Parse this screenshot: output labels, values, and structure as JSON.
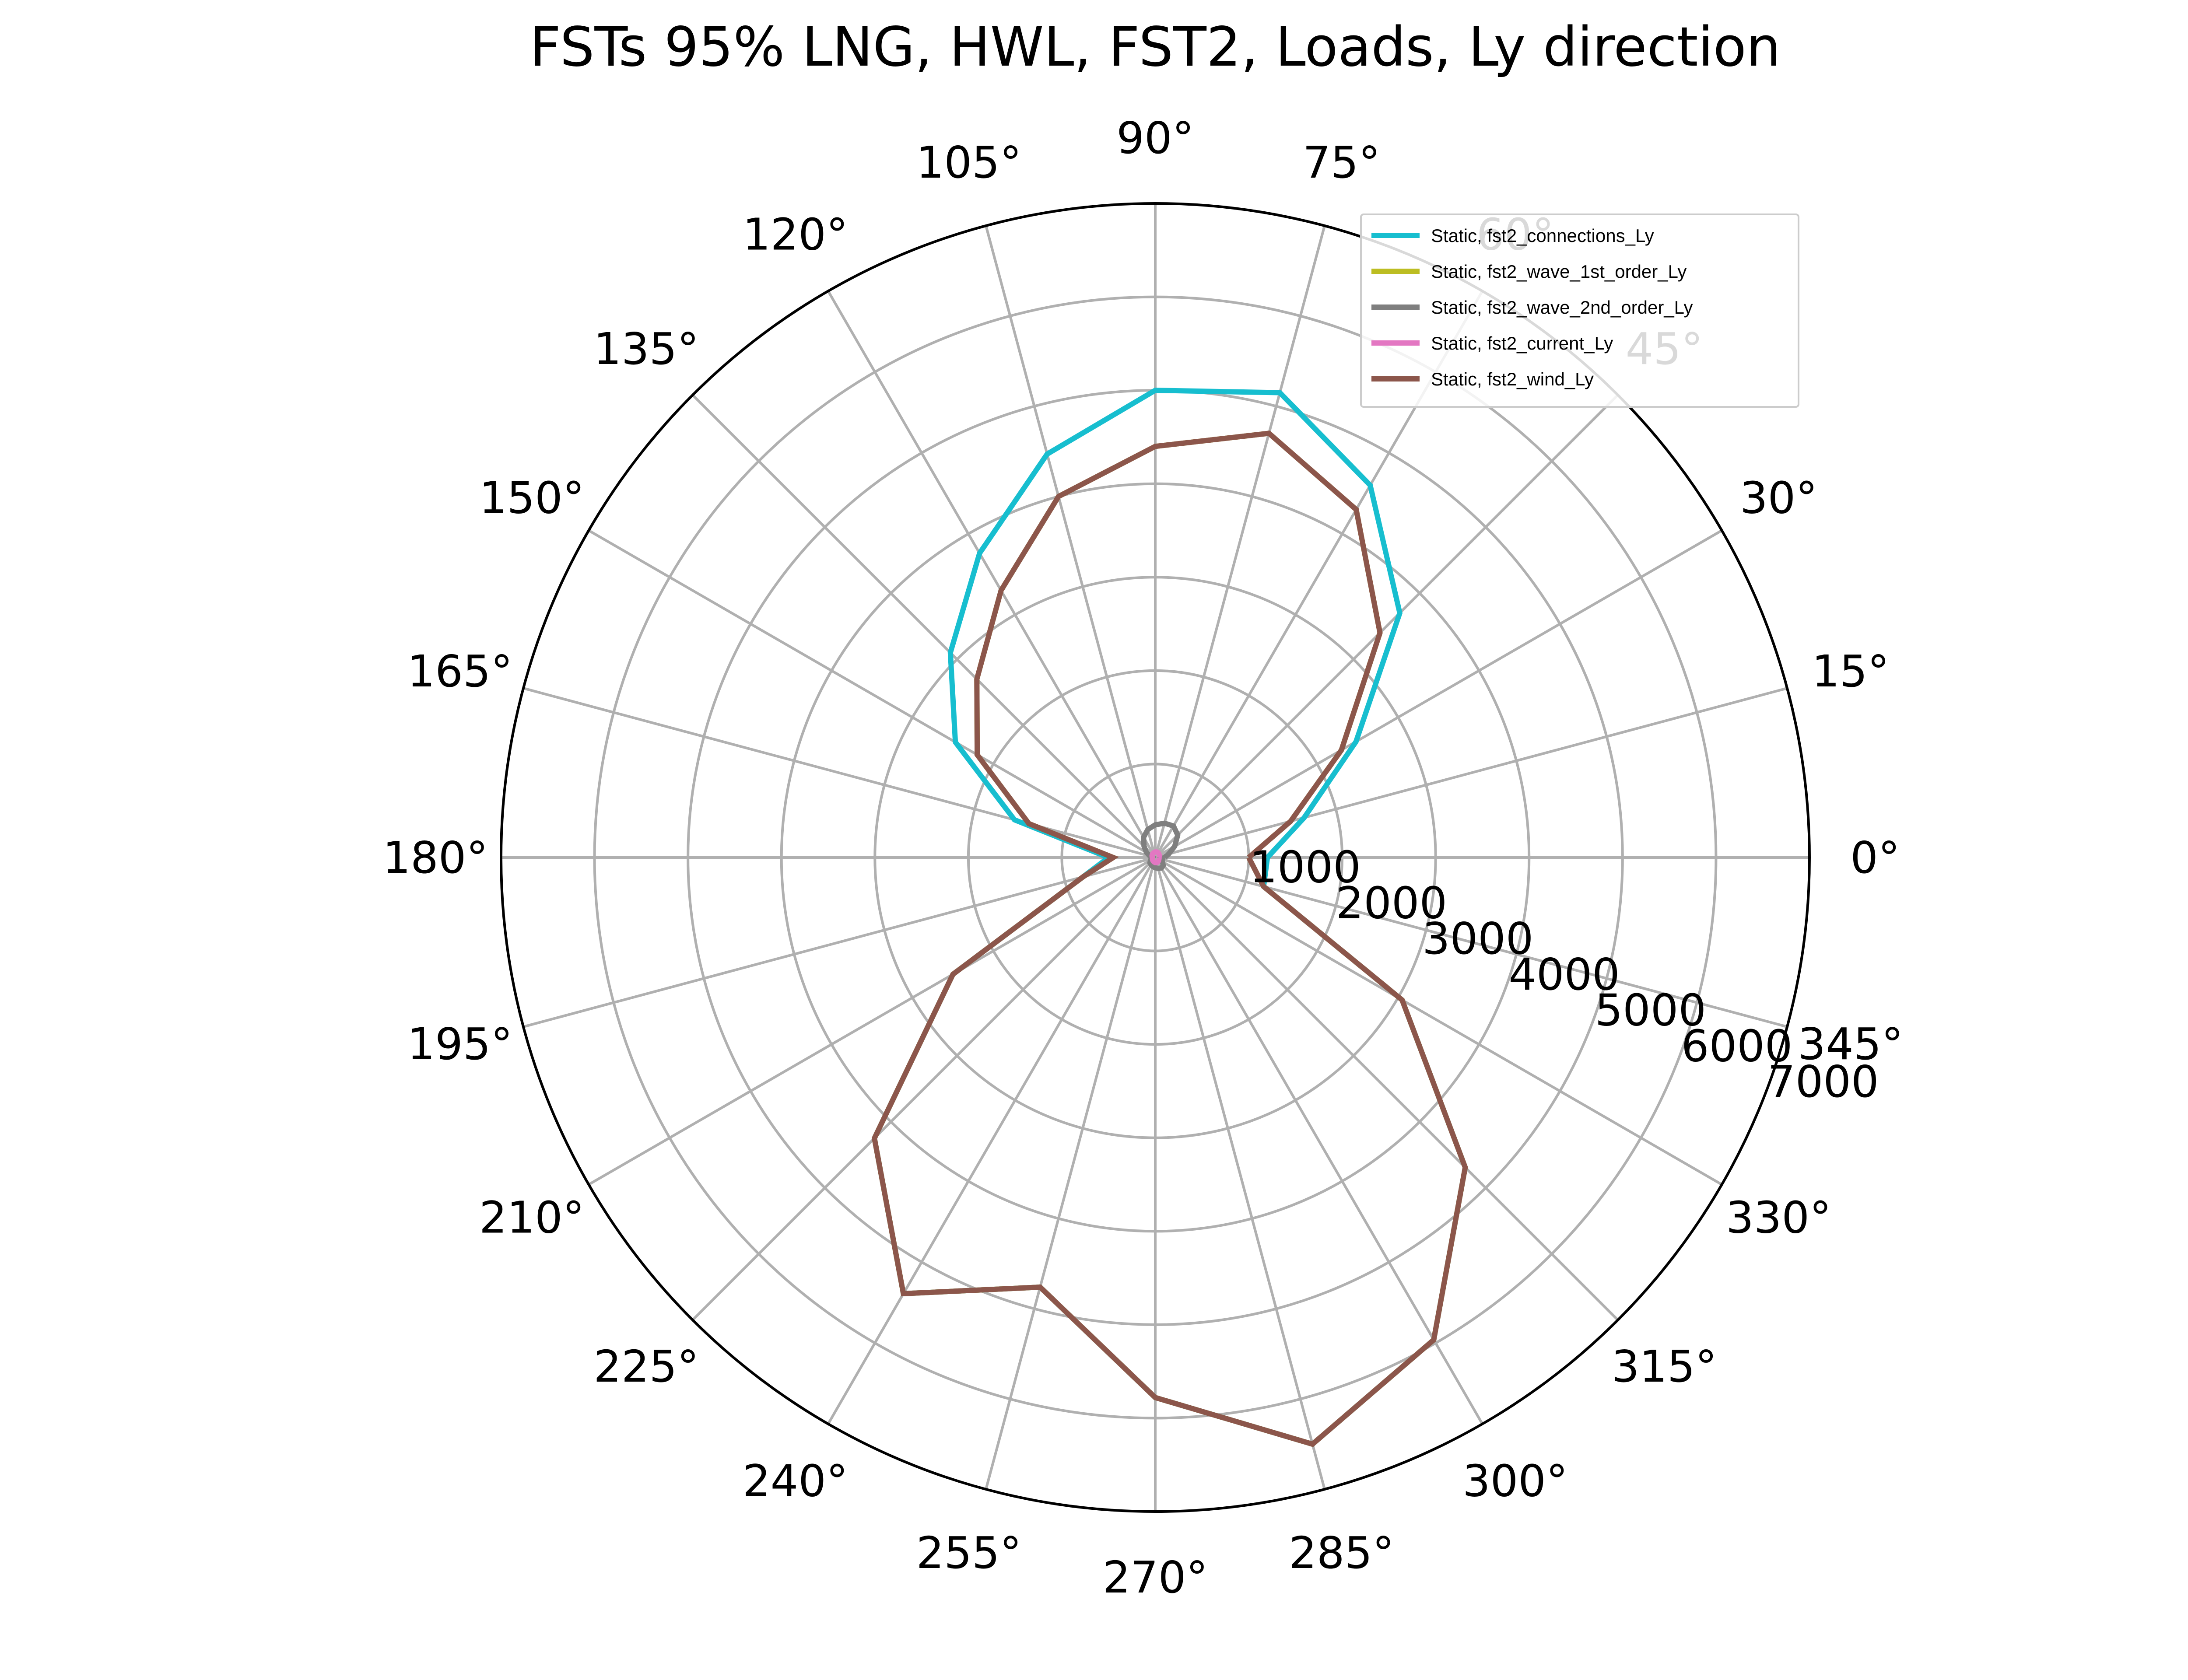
{
  "chart_data": {
    "type": "polar-line",
    "title": "FSTs 95% LNG, HWL, FST2, Loads, Ly direction",
    "theta_unit": "degrees",
    "theta_tick_labels": [
      "0°",
      "15°",
      "30°",
      "45°",
      "60°",
      "75°",
      "90°",
      "105°",
      "120°",
      "135°",
      "150°",
      "165°",
      "180°",
      "195°",
      "210°",
      "225°",
      "240°",
      "255°",
      "270°",
      "285°",
      "300°",
      "315°",
      "330°",
      "345°"
    ],
    "r_tick_labels": [
      "1000",
      "2000",
      "3000",
      "4000",
      "5000",
      "6000",
      "7000"
    ],
    "r_ticks": [
      1000,
      2000,
      3000,
      4000,
      5000,
      6000,
      7000
    ],
    "rlim": [
      0,
      7000
    ],
    "grid": true,
    "legend_position": "upper right",
    "theta": [
      0,
      15,
      30,
      45,
      60,
      75,
      90,
      105,
      120,
      135,
      150,
      165,
      180,
      195,
      210,
      225,
      240,
      255,
      270,
      285,
      300,
      315,
      330,
      345,
      360
    ],
    "series": [
      {
        "name": "Static, fst2_connections_Ly",
        "color": "#17becf",
        "values": [
          1200,
          1650,
          2480,
          3700,
          4600,
          5150,
          5000,
          4470,
          3760,
          3100,
          2470,
          1560,
          500,
          800,
          2500,
          4250,
          5390,
          4760,
          5780,
          6500,
          5960,
          4690,
          3050,
          1200,
          1200
        ]
      },
      {
        "name": "Static, fst2_wave_1st_order_Ly",
        "color": "#bcbd22",
        "values": [
          1000,
          1500,
          2300,
          3400,
          4300,
          4700,
          4400,
          4000,
          3300,
          2700,
          2200,
          1400,
          450,
          800,
          2500,
          4250,
          5390,
          4760,
          5780,
          6500,
          5960,
          4690,
          3050,
          1200,
          1000
        ]
      },
      {
        "name": "Static, fst2_wave_2nd_order_Ly",
        "color": "#7f7f7f",
        "values": [
          100,
          150,
          240,
          340,
          390,
          380,
          350,
          310,
          250,
          170,
          110,
          60,
          30,
          40,
          60,
          80,
          90,
          100,
          110,
          120,
          130,
          120,
          90,
          60,
          100
        ]
      },
      {
        "name": "Static, fst2_current_Ly",
        "color": "#e377c2",
        "values": [
          40,
          45,
          50,
          55,
          60,
          62,
          60,
          55,
          50,
          45,
          40,
          35,
          30,
          30,
          35,
          40,
          45,
          50,
          55,
          58,
          55,
          50,
          45,
          42,
          40
        ]
      },
      {
        "name": "Static, fst2_wind_Ly",
        "color": "#8c564b",
        "values": [
          1000,
          1500,
          2300,
          3400,
          4300,
          4700,
          4400,
          4000,
          3300,
          2700,
          2200,
          1400,
          450,
          800,
          2500,
          4250,
          5390,
          4760,
          5780,
          6500,
          5960,
          4690,
          3050,
          1200,
          1000
        ]
      }
    ]
  }
}
